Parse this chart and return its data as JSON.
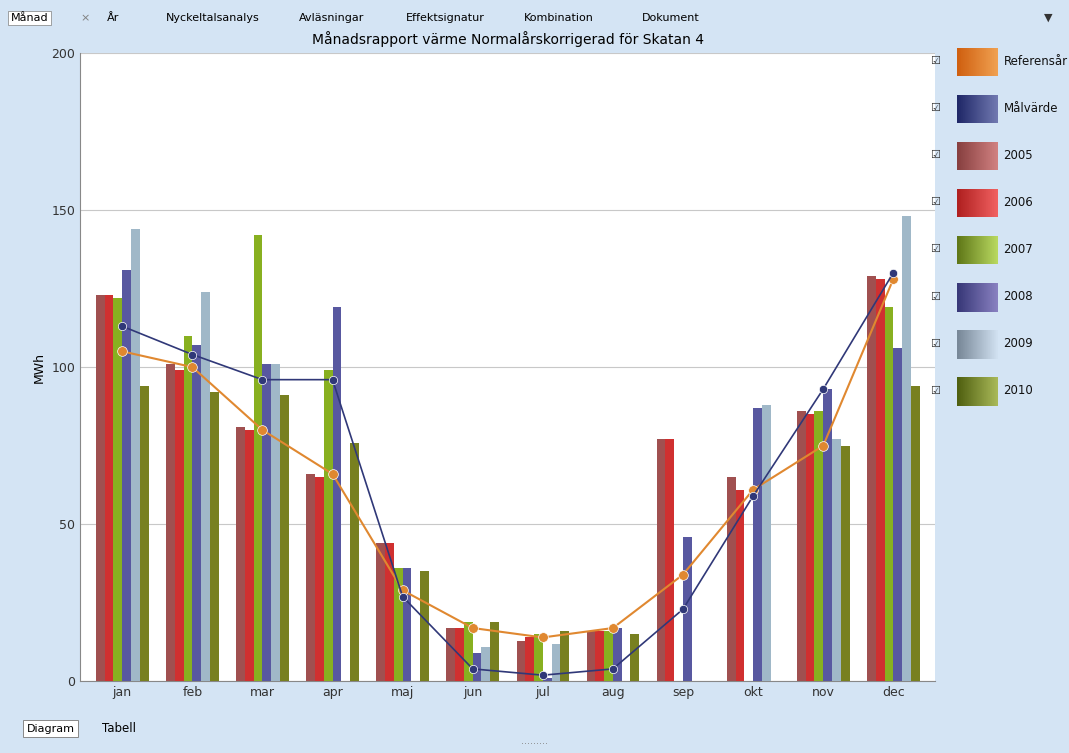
{
  "title": "Månadsrapport värme Normalårskorrigerad för Skatan 4",
  "ylabel": "MWh",
  "months": [
    "jan",
    "feb",
    "mar",
    "apr",
    "maj",
    "jun",
    "jul",
    "aug",
    "sep",
    "okt",
    "nov",
    "dec"
  ],
  "ylim": [
    0,
    200
  ],
  "yticks": [
    0,
    50,
    100,
    150,
    200
  ],
  "bar_data": {
    "2005": [
      123,
      101,
      81,
      66,
      44,
      17,
      13,
      16,
      77,
      65,
      86,
      129
    ],
    "2006": [
      123,
      99,
      80,
      65,
      44,
      17,
      14,
      16,
      77,
      61,
      85,
      128
    ],
    "2007": [
      122,
      110,
      142,
      99,
      36,
      19,
      15,
      16,
      0,
      0,
      86,
      119
    ],
    "2008": [
      131,
      107,
      101,
      119,
      36,
      9,
      1,
      17,
      46,
      87,
      93,
      106
    ],
    "2009": [
      144,
      124,
      101,
      0,
      0,
      11,
      12,
      0,
      0,
      88,
      77,
      148
    ],
    "2010": [
      94,
      92,
      91,
      76,
      35,
      19,
      16,
      15,
      0,
      0,
      75,
      94
    ]
  },
  "ref_line": [
    105,
    100,
    80,
    66,
    29,
    17,
    14,
    17,
    34,
    61,
    75,
    128
  ],
  "mal_line": [
    113,
    104,
    96,
    96,
    27,
    4,
    2,
    4,
    23,
    59,
    93,
    130
  ],
  "colors": {
    "2005": "#A05050",
    "2006": "#D03030",
    "2007": "#88B020",
    "2008": "#5858A0",
    "2009": "#A0B8C8",
    "2010": "#788020"
  },
  "legend_colors": {
    "Referensår": {
      "left": "#D06010",
      "right": "#F0A050"
    },
    "Målvärde": {
      "left": "#202868",
      "right": "#7078B0"
    },
    "2005": {
      "left": "#884040",
      "right": "#D08080"
    },
    "2006": {
      "left": "#B02020",
      "right": "#F06060"
    },
    "2007": {
      "left": "#607818",
      "right": "#B8D860"
    },
    "2008": {
      "left": "#383878",
      "right": "#8880C0"
    },
    "2009": {
      "left": "#788898",
      "right": "#D0E0F0"
    },
    "2010": {
      "left": "#506010",
      "right": "#A8B858"
    }
  },
  "ref_color": "#E08830",
  "mal_color": "#303878",
  "background_color": "#D4E4F4",
  "plot_bg": "#ffffff",
  "grid_color": "#c8c8c8"
}
